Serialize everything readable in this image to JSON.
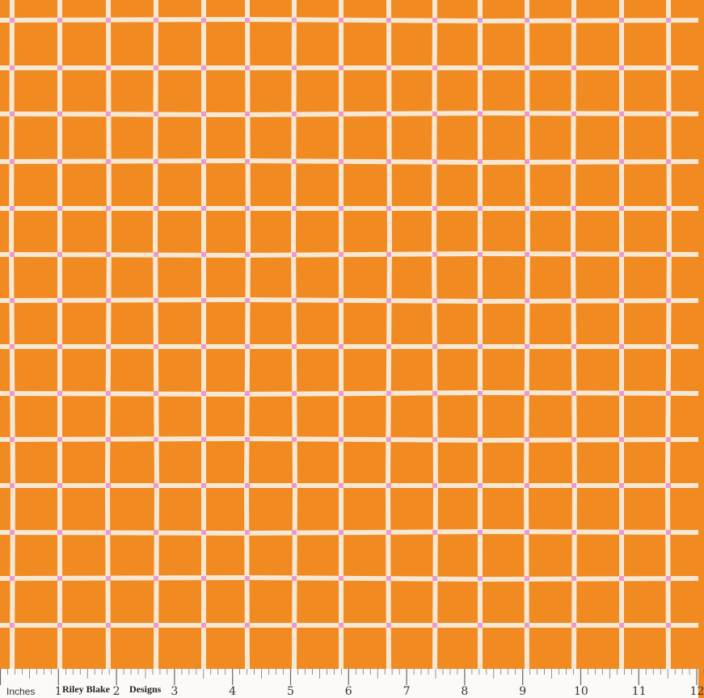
{
  "fabric": {
    "pattern": "hand-drawn windowpane grid",
    "colors": {
      "background": "#f28a22",
      "lines": "#f7e8d4",
      "intersections": "#ee9ac8"
    }
  },
  "ruler": {
    "units_label": "Inches",
    "brand_part1": "Riley Blake",
    "brand_part2": "Designs",
    "numbers": [
      "1",
      "2",
      "3",
      "4",
      "5",
      "6",
      "7",
      "8",
      "9",
      "10",
      "11",
      "12"
    ]
  }
}
